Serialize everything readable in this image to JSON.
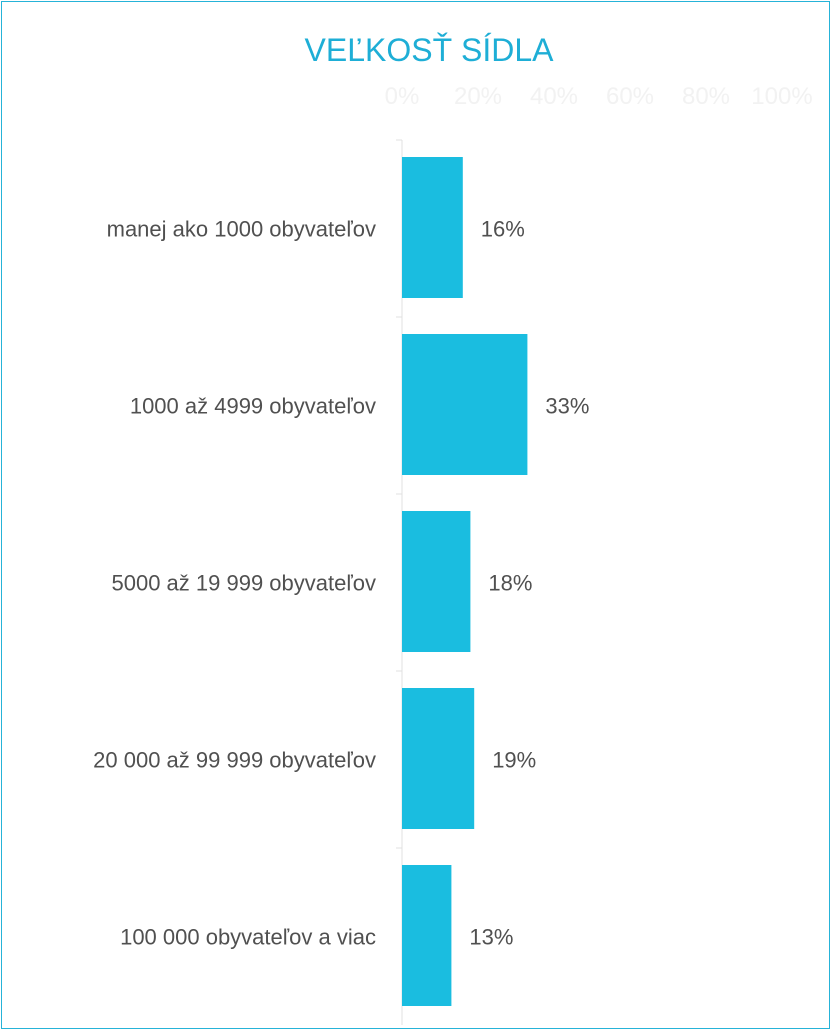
{
  "chart_data": {
    "type": "bar",
    "orientation": "horizontal",
    "title": "VEĽKOSŤ SÍDLA",
    "categories": [
      "manej ako 1000 obyvateľov",
      "1000 až 4999 obyvateľov",
      "5000 až 19 999 obyvateľov",
      "20 000 až 99 999 obyvateľov",
      "100 000 obyvateľov a viac"
    ],
    "values": [
      16,
      33,
      18,
      19,
      13
    ],
    "value_labels": [
      "16%",
      "33%",
      "18%",
      "19%",
      "13%"
    ],
    "xlim": [
      0,
      100
    ],
    "x_ticks": [
      "0%",
      "20%",
      "40%",
      "60%",
      "80%",
      "100%"
    ],
    "xlabel": "",
    "ylabel": "",
    "grid": false,
    "legend": "none",
    "colors": {
      "bar": "#1abde0",
      "title": "#1eaed6",
      "frame": "#26b3d8",
      "tick_text": "#f2f2f2",
      "label_text": "#505050",
      "axis": "#e0e0e0"
    }
  }
}
